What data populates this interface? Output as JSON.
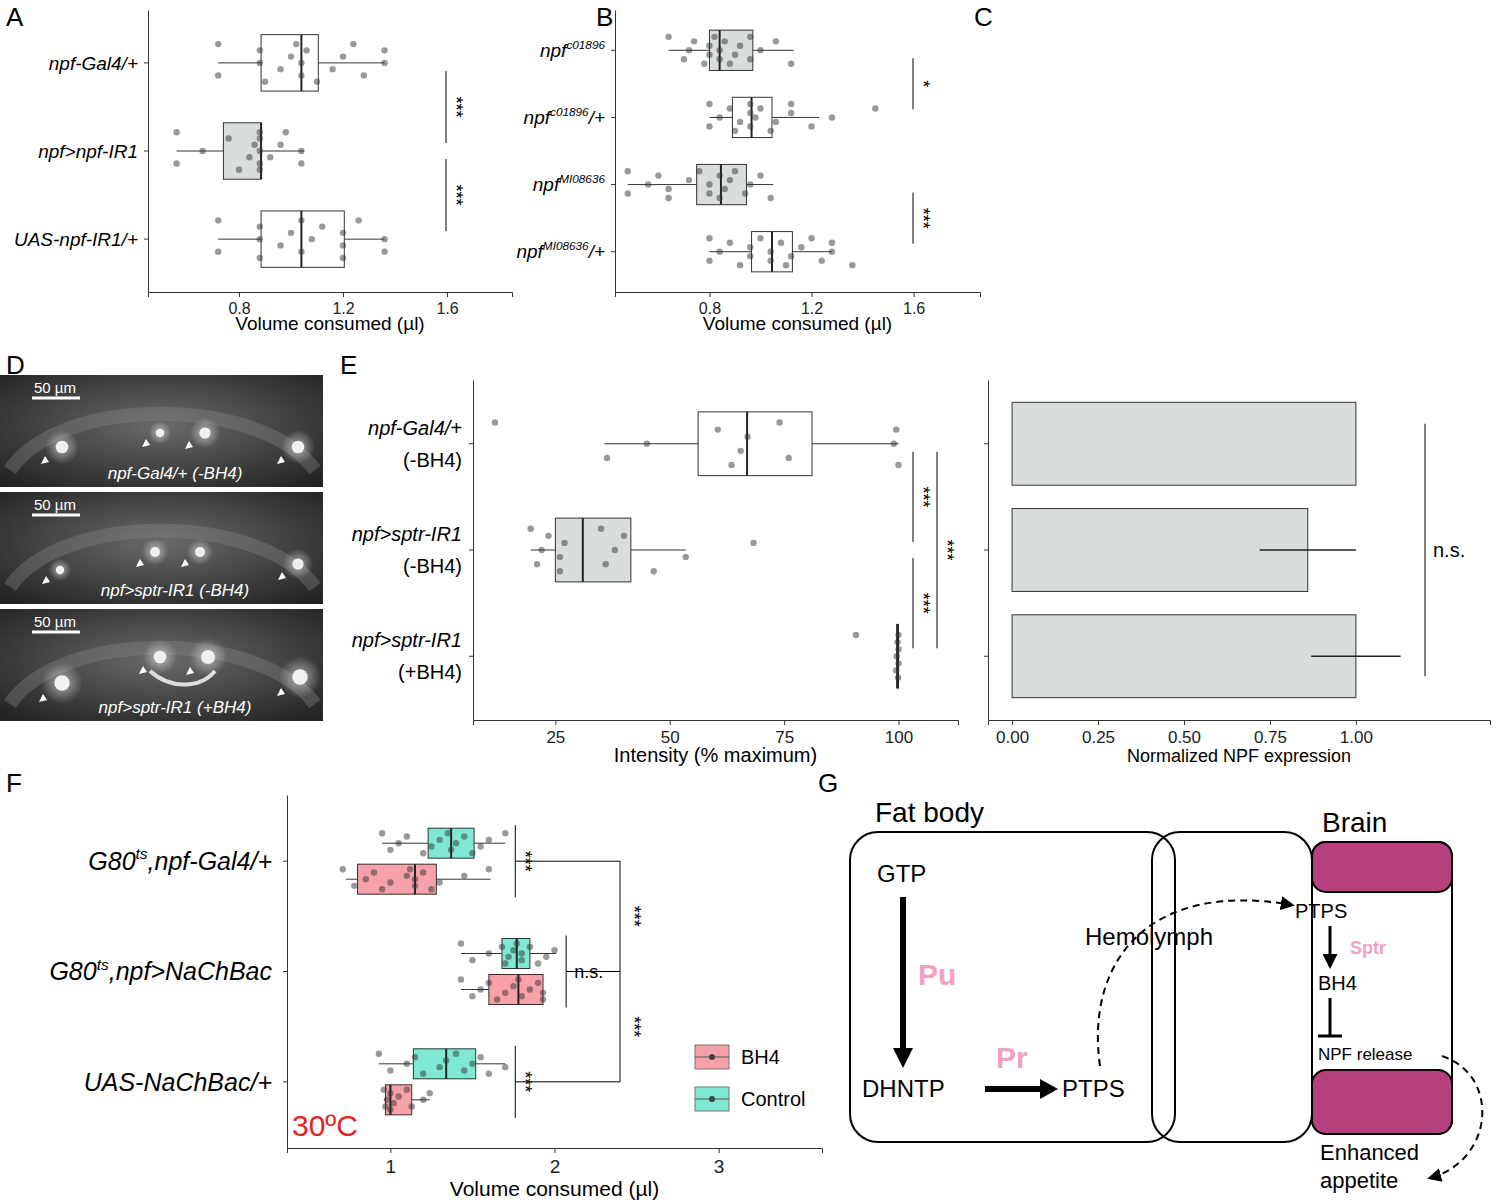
{
  "panel_labels": [
    "A",
    "B",
    "C",
    "D",
    "E",
    "F",
    "G"
  ],
  "chart_data": [
    {
      "type": "box",
      "orientation": "horizontal",
      "categories": [
        [
          [
            "npf-Gal4/+"
          ]
        ],
        [
          [
            "npf>npf-IR1"
          ]
        ],
        [
          [
            "UAS-npf-IR1/+"
          ]
        ]
      ],
      "x_label": "Volume consumed (µl)",
      "xlim": [
        0.45,
        1.85
      ],
      "xticks": [
        0.8,
        1.2,
        1.6
      ],
      "colors": [
        "#ffffff",
        "#d9dedd",
        "#ffffff"
      ],
      "boxes": [
        {
          "min": 0.72,
          "q1": 0.885,
          "median": 1.04,
          "q3": 1.105,
          "max": 1.36,
          "points": [
            0.72,
            0.72,
            0.88,
            0.88,
            0.9,
            0.96,
            1.0,
            1.02,
            1.04,
            1.04,
            1.06,
            1.1,
            1.16,
            1.2,
            1.24,
            1.28,
            1.36,
            1.36
          ]
        },
        {
          "min": 0.56,
          "q1": 0.74,
          "median": 0.885,
          "q3": 0.885,
          "max": 1.05,
          "points": [
            0.56,
            0.56,
            0.66,
            0.76,
            0.8,
            0.84,
            0.86,
            0.88,
            0.88,
            0.88,
            0.88,
            0.88,
            0.92,
            0.96,
            0.98,
            1.04,
            1.04
          ]
        },
        {
          "min": 0.72,
          "q1": 0.885,
          "median": 1.04,
          "q3": 1.205,
          "max": 1.36,
          "points": [
            0.72,
            0.72,
            0.88,
            0.88,
            0.88,
            0.96,
            1.0,
            1.04,
            1.04,
            1.08,
            1.12,
            1.2,
            1.2,
            1.2,
            1.26,
            1.36,
            1.36
          ]
        }
      ],
      "significance": [
        {
          "from": 0,
          "to": 1,
          "label": "***"
        },
        {
          "from": 1,
          "to": 2,
          "label": "***"
        }
      ]
    },
    {
      "type": "box",
      "orientation": "horizontal",
      "categories": [
        [
          [
            "npf",
            {
              "sup": "c01896"
            }
          ]
        ],
        [
          [
            "npf",
            {
              "sup": "c01896"
            },
            "/+"
          ]
        ],
        [
          [
            "npf",
            {
              "sup": "MI08636"
            }
          ]
        ],
        [
          [
            "npf",
            {
              "sup": "MI08636"
            },
            "/+"
          ]
        ]
      ],
      "x_label": "Volume consumed (µl)",
      "xlim": [
        0.43,
        1.86
      ],
      "xticks": [
        0.8,
        1.2,
        1.6
      ],
      "colors": [
        "#d9dedd",
        "#ffffff",
        "#d9dedd",
        "#ffffff"
      ],
      "boxes": [
        {
          "min": 0.64,
          "q1": 0.8,
          "median": 0.84,
          "q3": 0.97,
          "max": 1.13,
          "points": [
            0.64,
            0.7,
            0.72,
            0.74,
            0.78,
            0.8,
            0.8,
            0.82,
            0.84,
            0.84,
            0.86,
            0.88,
            0.9,
            0.92,
            0.96,
            0.96,
            1.0,
            1.06,
            1.12
          ]
        },
        {
          "min": 0.8,
          "q1": 0.89,
          "median": 0.965,
          "q3": 1.045,
          "max": 1.23,
          "points": [
            0.8,
            0.8,
            0.84,
            0.88,
            0.9,
            0.92,
            0.96,
            0.96,
            0.96,
            0.98,
            1.0,
            1.04,
            1.06,
            1.12,
            1.12,
            1.2,
            1.28,
            1.45
          ]
        },
        {
          "min": 0.48,
          "q1": 0.75,
          "median": 0.845,
          "q3": 0.945,
          "max": 1.05,
          "points": [
            0.48,
            0.48,
            0.56,
            0.6,
            0.64,
            0.64,
            0.72,
            0.76,
            0.8,
            0.8,
            0.84,
            0.84,
            0.86,
            0.88,
            0.9,
            0.94,
            0.96,
            1.0,
            1.04
          ]
        },
        {
          "min": 0.8,
          "q1": 0.965,
          "median": 1.045,
          "q3": 1.125,
          "max": 1.28,
          "points": [
            0.8,
            0.8,
            0.84,
            0.88,
            0.92,
            0.96,
            0.96,
            1.0,
            1.04,
            1.04,
            1.08,
            1.1,
            1.12,
            1.16,
            1.2,
            1.24,
            1.28,
            1.28,
            1.36
          ]
        }
      ],
      "significance": [
        {
          "from": 0,
          "to": 1,
          "label": "*"
        },
        {
          "from": 2,
          "to": 3,
          "label": "***"
        }
      ]
    },
    {
      "type": "box",
      "orientation": "horizontal",
      "categories": [
        [
          [
            "npf-Gal4/+"
          ],
          [
            "(-BH4)"
          ]
        ],
        [
          [
            "npf>sptr-IR1"
          ],
          [
            "(-BH4)"
          ]
        ],
        [
          [
            "npf>sptr-IR1"
          ],
          [
            "(+BH4)"
          ]
        ]
      ],
      "x_label": "Intensity (% maximum)",
      "xlim": [
        7,
        113
      ],
      "xticks": [
        25,
        50,
        75,
        100
      ],
      "colors": [
        "#ffffff",
        "#d9dedd",
        "#ffffff"
      ],
      "boxes": [
        {
          "min": 35.7,
          "q1": 56.2,
          "median": 66.9,
          "q3": 81.1,
          "max": 100,
          "points": [
            11.8,
            36.3,
            45,
            60.5,
            63.5,
            65.5,
            67,
            74,
            76,
            99,
            99.5,
            100
          ]
        },
        {
          "min": 19.6,
          "q1": 25,
          "median": 31,
          "q3": 41.5,
          "max": 53.5,
          "points": [
            19.6,
            21,
            22,
            23.5,
            26,
            26,
            27,
            35,
            36,
            38,
            40,
            46.5,
            53.5,
            68.3
          ]
        },
        {
          "min": 99.5,
          "q1": 99.6,
          "median": 99.8,
          "q3": 100,
          "max": 100,
          "points": [
            90.7,
            99.5,
            99.6,
            99.8,
            99.9,
            100,
            100,
            100
          ]
        }
      ],
      "significance": [
        {
          "from": 0,
          "to": 1,
          "label": "***"
        },
        {
          "from": 1,
          "to": 2,
          "label": "***"
        },
        {
          "from": 0,
          "to": 2,
          "label": "***"
        }
      ]
    },
    {
      "type": "bar",
      "orientation": "horizontal",
      "tick_labels": "x",
      "categories": [
        null,
        null,
        null
      ],
      "x_label": "Normalized NPF expression",
      "xlim": [
        -0.07,
        1.39
      ],
      "xticks": [
        {
          "value": 0,
          "label": "0.00"
        },
        {
          "value": 0.25,
          "label": "0.25"
        },
        {
          "value": 0.5,
          "label": "0.50"
        },
        {
          "value": 0.75,
          "label": "0.75"
        },
        {
          "value": 1,
          "label": "1.00"
        }
      ],
      "color": "#d9dedd",
      "values": [
        1.0,
        0.86,
        1.0
      ],
      "errors": [
        0,
        0.14,
        0.13
      ],
      "significance": [
        {
          "from": 0,
          "to": 2,
          "label": "n.s."
        }
      ]
    },
    {
      "type": "box",
      "orientation": "horizontal",
      "legend": "bottom-right",
      "categories": [
        [
          [
            "G80",
            {
              "sup": "ts"
            },
            ",npf-Gal4/+"
          ]
        ],
        [
          [
            "G80",
            {
              "sup": "ts"
            },
            ",npf>NaChBac"
          ]
        ],
        [
          [
            "UAS-NaChBac/+"
          ]
        ]
      ],
      "x_label": "Volume consumed (µl)",
      "annotation": "30ºC",
      "xlim": [
        0.37,
        3.63
      ],
      "xticks": [
        1,
        2,
        3
      ],
      "series": [
        {
          "name": "BH4",
          "color": "#f7a1ab",
          "boxes": [
            {
              "min": 0.73,
              "q1": 0.8,
              "median": 1.15,
              "q3": 1.28,
              "max": 1.61,
              "points": [
                0.71,
                0.78,
                0.85,
                0.9,
                0.95,
                1.0,
                1.1,
                1.12,
                1.15,
                1.15,
                1.2,
                1.25,
                1.3,
                1.45,
                1.6
              ]
            },
            {
              "min": 1.43,
              "q1": 1.6,
              "median": 1.78,
              "q3": 1.93,
              "max": 1.93,
              "points": [
                1.43,
                1.5,
                1.55,
                1.6,
                1.65,
                1.7,
                1.75,
                1.78,
                1.8,
                1.85,
                1.9,
                1.93,
                1.93
              ]
            },
            {
              "min": 0.96,
              "q1": 0.97,
              "median": 1.0,
              "q3": 1.13,
              "max": 1.24,
              "points": [
                0.96,
                0.97,
                0.98,
                1.0,
                1.0,
                1.02,
                1.05,
                1.1,
                1.13,
                1.2,
                1.24
              ]
            }
          ]
        },
        {
          "name": "Control",
          "color": "#7ee8d2",
          "boxes": [
            {
              "min": 0.95,
              "q1": 1.23,
              "median": 1.37,
              "q3": 1.51,
              "max": 1.7,
              "points": [
                0.95,
                1.0,
                1.05,
                1.1,
                1.2,
                1.25,
                1.3,
                1.35,
                1.37,
                1.4,
                1.45,
                1.5,
                1.55,
                1.6,
                1.7
              ]
            },
            {
              "min": 1.43,
              "q1": 1.68,
              "median": 1.77,
              "q3": 1.85,
              "max": 2.01,
              "points": [
                1.43,
                1.5,
                1.6,
                1.68,
                1.7,
                1.72,
                1.75,
                1.77,
                1.8,
                1.8,
                1.85,
                1.9,
                1.95,
                2.0
              ]
            },
            {
              "min": 0.93,
              "q1": 1.14,
              "median": 1.34,
              "q3": 1.52,
              "max": 1.7,
              "points": [
                0.93,
                1.0,
                1.1,
                1.15,
                1.2,
                1.3,
                1.34,
                1.4,
                1.45,
                1.5,
                1.55,
                1.6,
                1.7
              ]
            }
          ]
        }
      ],
      "pair_significance": [
        "***",
        "n.s.",
        "***"
      ],
      "significance": [
        {
          "from": 0,
          "to": 1,
          "label": "***"
        },
        {
          "from": 1,
          "to": 2,
          "label": "***"
        }
      ]
    }
  ],
  "images": [
    {
      "label": "npf-Gal4/+ (-BH4)",
      "scale_bar": "50 µm"
    },
    {
      "label": "npf>sptr-IR1 (-BH4)",
      "scale_bar": "50 µm"
    },
    {
      "label": "npf>sptr-IR1 (+BH4)",
      "scale_bar": "50 µm"
    }
  ],
  "diagram": {
    "fat_body": "Fat body",
    "brain": "Brain",
    "hemolymph": "Hemolymph",
    "gtp": "GTP",
    "pu": "Pu",
    "dhntp": "DHNTP",
    "pr": "Pr",
    "ptps_fat": "PTPS",
    "ptps_brain": "PTPS",
    "sptr": "Sptr",
    "bh4": "BH4",
    "npf_release": "NPF release",
    "appetite": [
      "Enhanced",
      "appetite"
    ]
  }
}
